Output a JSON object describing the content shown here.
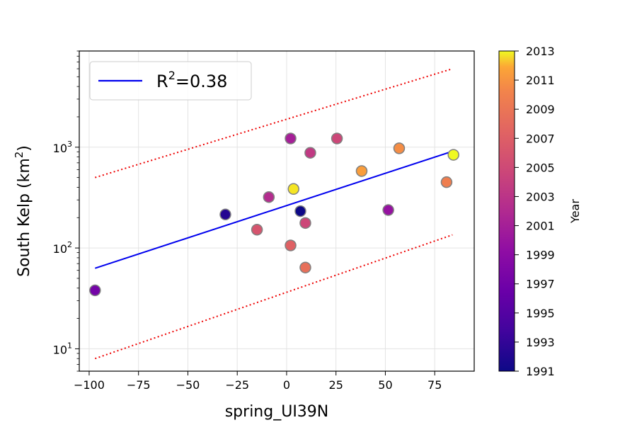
{
  "chart_data": {
    "type": "scatter",
    "xlabel": "spring_UI39N",
    "ylabel_main": "South Kelp (km",
    "ylabel_sup": "2",
    "ylabel_close": ")",
    "y_scale": "log",
    "xlim": [
      -105,
      95
    ],
    "ylim": [
      6,
      9000
    ],
    "x_ticks": [
      -100,
      -75,
      -50,
      -25,
      0,
      25,
      50,
      75
    ],
    "x_tick_labels": [
      "−100",
      "−75",
      "−50",
      "−25",
      "0",
      "25",
      "50",
      "75"
    ],
    "y_ticks": [
      10,
      100,
      1000
    ],
    "y_tick_base": "10",
    "y_tick_exps": [
      "1",
      "2",
      "3"
    ],
    "grid": true,
    "legend": {
      "position": "top-left",
      "label_prefix": "R",
      "label_sup": "2",
      "label_suffix": "=0.38",
      "color": "#0000ee"
    },
    "colorbar": {
      "label": "Year",
      "min": 1991,
      "max": 2013,
      "ticks": [
        "1991",
        "1993",
        "1995",
        "1997",
        "1999",
        "2001",
        "2003",
        "2005",
        "2007",
        "2009",
        "2011",
        "2013"
      ],
      "colormap": "plasma"
    },
    "points": [
      {
        "x": -97,
        "y": 38,
        "year": 1996
      },
      {
        "x": -31,
        "y": 215,
        "year": 1992
      },
      {
        "x": -15,
        "y": 152,
        "year": 2003
      },
      {
        "x": -9,
        "y": 320,
        "year": 2000
      },
      {
        "x": 2,
        "y": 1220,
        "year": 1999
      },
      {
        "x": 2,
        "y": 106,
        "year": 2004
      },
      {
        "x": 3.5,
        "y": 385,
        "year": 2012
      },
      {
        "x": 7,
        "y": 232,
        "year": 1991
      },
      {
        "x": 9.5,
        "y": 177,
        "year": 2002
      },
      {
        "x": 9.5,
        "y": 64,
        "year": 2005
      },
      {
        "x": 12,
        "y": 880,
        "year": 2001
      },
      {
        "x": 25.5,
        "y": 1220,
        "year": 2002
      },
      {
        "x": 38,
        "y": 580,
        "year": 2008
      },
      {
        "x": 51.5,
        "y": 238,
        "year": 1998
      },
      {
        "x": 57,
        "y": 975,
        "year": 2007
      },
      {
        "x": 81,
        "y": 450,
        "year": 2006
      },
      {
        "x": 84.5,
        "y": 840,
        "year": 2013
      }
    ],
    "fit_line": {
      "x": [
        -97,
        84
      ],
      "y": [
        63,
        910
      ],
      "color": "#0000ee"
    },
    "upper_bound": {
      "x": [
        -97,
        84
      ],
      "y": [
        500,
        6000
      ],
      "color": "#ee0000"
    },
    "lower_bound": {
      "x": [
        -97,
        84
      ],
      "y": [
        8,
        135
      ],
      "color": "#ee0000"
    }
  }
}
